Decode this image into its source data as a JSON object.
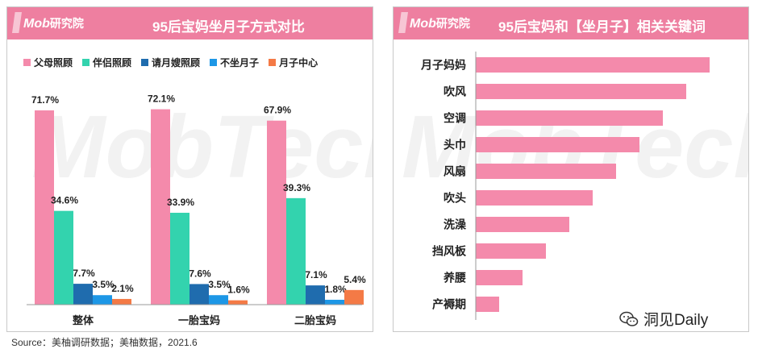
{
  "left_panel": {
    "brand": "Mob",
    "brand_cn": "研究院",
    "title": "95后宝妈坐月子方式对比"
  },
  "right_panel": {
    "brand": "Mob",
    "brand_cn": "研究院",
    "title": "95后宝妈和【坐月子】相关关键词"
  },
  "source": "Source：美柚调研数据；美柚数据，2021.6",
  "wechat_label": "洞见Daily",
  "colors": {
    "header": "#ee7fa0",
    "pink": "#f48aab",
    "teal": "#33d3ae",
    "navy": "#1f6cae",
    "blue": "#1d97e6",
    "orange": "#f47a46"
  },
  "chart_data": [
    {
      "type": "bar",
      "title": "95后宝妈坐月子方式对比",
      "categories": [
        "整体",
        "一胎宝妈",
        "二胎宝妈"
      ],
      "series": [
        {
          "name": "父母照顾",
          "values": [
            71.7,
            72.1,
            67.9
          ],
          "color": "#f48aab"
        },
        {
          "name": "伴侣照顾",
          "values": [
            34.6,
            33.9,
            39.3
          ],
          "color": "#33d3ae"
        },
        {
          "name": "请月嫂照顾",
          "values": [
            7.7,
            7.6,
            7.1
          ],
          "color": "#1f6cae"
        },
        {
          "name": "不坐月子",
          "values": [
            3.5,
            3.5,
            1.8
          ],
          "color": "#1d97e6"
        },
        {
          "name": "月子中心",
          "values": [
            2.1,
            1.6,
            5.4
          ],
          "color": "#f47a46"
        }
      ],
      "value_labels": [
        [
          "71.7%",
          "72.1%",
          "67.9%"
        ],
        [
          "34.6%",
          "33.9%",
          "39.3%"
        ],
        [
          "7.7%",
          "7.6%",
          "7.1%"
        ],
        [
          "3.5%",
          "3.5%",
          "1.8%"
        ],
        [
          "2.1%",
          "1.6%",
          "5.4%"
        ]
      ],
      "ylim": [
        0,
        80
      ],
      "legend": "top",
      "grid": false
    },
    {
      "type": "bar",
      "orientation": "horizontal",
      "title": "95后宝妈和【坐月子】相关关键词",
      "categories": [
        "月子妈妈",
        "吹风",
        "空调",
        "头巾",
        "风扇",
        "吹头",
        "洗澡",
        "挡风板",
        "养腰",
        "产褥期"
      ],
      "values": [
        10,
        9,
        8,
        7,
        6,
        5,
        4,
        3,
        2,
        1
      ],
      "color": "#f48aab",
      "grid": false
    }
  ]
}
